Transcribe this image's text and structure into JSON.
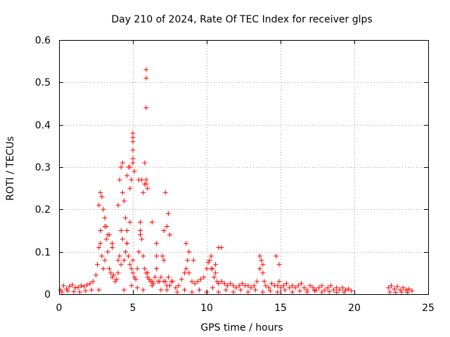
{
  "chart_data": {
    "type": "scatter",
    "title": "Day 210 of 2024, Rate Of TEC Index for receiver glps",
    "xlabel": "GPS time / hours",
    "ylabel": "ROTI / TECUs",
    "xlim": [
      0,
      25
    ],
    "ylim": [
      0,
      0.6
    ],
    "xticks": [
      0,
      5,
      10,
      15,
      20,
      25
    ],
    "xtick_labels": [
      "0",
      "5",
      "10",
      "15",
      "20",
      "25"
    ],
    "yticks": [
      0,
      0.1,
      0.2,
      0.3,
      0.4,
      0.5,
      0.6
    ],
    "ytick_labels": [
      "0",
      "0.1",
      "0.2",
      "0.3",
      "0.4",
      "0.5",
      "0.6"
    ],
    "grid": true,
    "marker": "plus",
    "color": "#ff0000",
    "series": [
      {
        "name": "ROTI",
        "x": [
          0.1,
          0.3,
          0.5,
          0.7,
          0.9,
          1.1,
          1.3,
          1.5,
          1.7,
          1.9,
          2.1,
          2.3,
          2.5,
          2.6,
          2.7,
          2.8,
          2.9,
          3.0,
          3.1,
          3.2,
          3.3,
          3.4,
          3.5,
          3.6,
          3.7,
          3.8,
          3.9,
          4.0,
          4.1,
          4.2,
          4.3,
          4.4,
          4.5,
          4.6,
          4.7,
          4.8,
          4.9,
          5.0,
          5.1,
          5.2,
          5.3,
          5.4,
          5.5,
          5.6,
          5.7,
          5.8,
          5.9,
          6.0,
          6.1,
          6.2,
          6.3,
          6.4,
          6.5,
          6.6,
          6.7,
          6.8,
          6.9,
          7.0,
          7.1,
          7.2,
          7.3,
          7.4,
          7.5,
          7.7,
          7.9,
          8.1,
          8.3,
          8.5,
          8.6,
          8.7,
          8.8,
          9.0,
          9.2,
          9.4,
          9.6,
          9.8,
          10.0,
          10.1,
          10.2,
          10.3,
          10.4,
          10.5,
          10.6,
          10.7,
          10.8,
          11.0,
          11.2,
          11.4,
          11.6,
          11.8,
          12.0,
          12.2,
          12.4,
          12.6,
          12.8,
          13.0,
          13.2,
          13.4,
          13.6,
          13.7,
          13.8,
          13.9,
          14.0,
          14.2,
          14.4,
          14.6,
          14.8,
          14.9,
          15.0,
          15.2,
          15.4,
          15.6,
          15.8,
          16.0,
          16.2,
          16.4,
          16.6,
          16.8,
          17.0,
          17.2,
          17.4,
          17.6,
          17.8,
          18.0,
          18.2,
          18.4,
          18.6,
          18.8,
          19.0,
          19.2,
          19.4,
          19.6,
          19.8,
          22.3,
          22.5,
          22.7,
          22.9,
          23.1,
          23.3,
          23.5,
          23.7,
          23.9,
          0.2,
          0.6,
          1.0,
          1.4,
          1.8,
          2.2,
          2.7,
          2.8,
          3.1,
          3.3,
          3.6,
          4.0,
          4.2,
          4.4,
          4.6,
          4.8,
          4.9,
          5.0,
          5.3,
          5.5,
          5.7,
          6.0,
          6.3,
          6.6,
          6.9,
          7.1,
          7.3,
          7.6,
          8.0,
          8.5,
          9.0,
          9.5,
          10.0,
          10.4,
          10.8,
          11.3,
          11.8,
          12.3,
          12.8,
          13.3,
          13.8,
          14.3,
          14.8,
          15.3,
          15.8,
          16.3,
          16.8,
          17.3,
          17.8,
          18.3,
          18.8,
          19.3,
          22.4,
          22.8,
          23.2,
          23.6,
          2.7,
          2.8,
          2.9,
          3.0,
          3.1,
          3.2,
          3.4,
          3.6,
          4.0,
          4.1,
          4.2,
          4.3,
          4.4,
          4.5,
          4.6,
          4.7,
          4.8,
          4.9,
          5.0,
          5.0,
          5.0,
          5.1,
          5.4,
          5.5,
          5.6,
          5.7,
          5.8,
          5.9,
          5.9,
          5.9,
          6.0,
          6.3,
          6.6,
          7.1,
          7.2,
          7.3,
          7.4,
          7.5,
          8.6,
          8.8,
          9.1,
          10.3,
          10.6,
          10.8,
          11.0,
          13.6,
          13.8,
          14.7,
          14.9,
          5.0,
          5.0,
          5.8,
          5.9,
          5.9,
          5.0,
          4.8,
          4.6,
          4.3
        ],
        "y": [
          0.01,
          0.02,
          0.012,
          0.018,
          0.022,
          0.015,
          0.016,
          0.02,
          0.018,
          0.022,
          0.025,
          0.03,
          0.045,
          0.07,
          0.11,
          0.12,
          0.09,
          0.06,
          0.08,
          0.13,
          0.1,
          0.06,
          0.05,
          0.04,
          0.045,
          0.03,
          0.035,
          0.05,
          0.09,
          0.15,
          0.13,
          0.08,
          0.1,
          0.12,
          0.09,
          0.07,
          0.06,
          0.05,
          0.04,
          0.035,
          0.06,
          0.1,
          0.15,
          0.13,
          0.09,
          0.06,
          0.05,
          0.04,
          0.035,
          0.03,
          0.03,
          0.025,
          0.04,
          0.06,
          0.03,
          0.03,
          0.04,
          0.09,
          0.03,
          0.03,
          0.02,
          0.04,
          0.02,
          0.03,
          0.015,
          0.02,
          0.035,
          0.05,
          0.06,
          0.08,
          0.05,
          0.03,
          0.025,
          0.03,
          0.035,
          0.04,
          0.06,
          0.075,
          0.08,
          0.09,
          0.06,
          0.04,
          0.05,
          0.03,
          0.025,
          0.03,
          0.025,
          0.02,
          0.025,
          0.02,
          0.015,
          0.02,
          0.025,
          0.02,
          0.02,
          0.015,
          0.02,
          0.03,
          0.06,
          0.08,
          0.05,
          0.03,
          0.02,
          0.015,
          0.025,
          0.02,
          0.02,
          0.03,
          0.015,
          0.02,
          0.025,
          0.015,
          0.02,
          0.015,
          0.02,
          0.025,
          0.015,
          0.01,
          0.02,
          0.015,
          0.01,
          0.015,
          0.02,
          0.01,
          0.015,
          0.02,
          0.01,
          0.015,
          0.01,
          0.015,
          0.01,
          0.012,
          0.008,
          0.015,
          0.02,
          0.012,
          0.018,
          0.01,
          0.015,
          0.01,
          0.012,
          0.008,
          0.005,
          0.008,
          0.006,
          0.005,
          0.008,
          0.01,
          0.01,
          0.15,
          0.16,
          0.14,
          0.11,
          0.08,
          0.07,
          0.01,
          0.12,
          0.17,
          0.02,
          0.08,
          0.015,
          0.14,
          0.01,
          0.05,
          0.02,
          0.09,
          0.01,
          0.08,
          0.01,
          0.03,
          0.005,
          0.01,
          0.005,
          0.01,
          0.005,
          0.015,
          0.005,
          0.01,
          0.005,
          0.01,
          0.005,
          0.01,
          0.005,
          0.008,
          0.005,
          0.01,
          0.005,
          0.008,
          0.005,
          0.008,
          0.005,
          0.006,
          0.004,
          0.005,
          0.005,
          0.004,
          0.005,
          0.004,
          0.21,
          0.24,
          0.23,
          0.2,
          0.18,
          0.16,
          0.14,
          0.12,
          0.21,
          0.27,
          0.3,
          0.24,
          0.22,
          0.18,
          0.15,
          0.3,
          0.25,
          0.27,
          0.37,
          0.36,
          0.34,
          0.29,
          0.27,
          0.17,
          0.27,
          0.24,
          0.26,
          0.53,
          0.51,
          0.44,
          0.25,
          0.17,
          0.12,
          0.15,
          0.24,
          0.16,
          0.19,
          0.14,
          0.12,
          0.1,
          0.08,
          0.06,
          0.07,
          0.11,
          0.11,
          0.09,
          0.07,
          0.09,
          0.07,
          0.38,
          0.31,
          0.31,
          0.27,
          0.26,
          0.32,
          0.3,
          0.28,
          0.31
        ]
      }
    ]
  }
}
